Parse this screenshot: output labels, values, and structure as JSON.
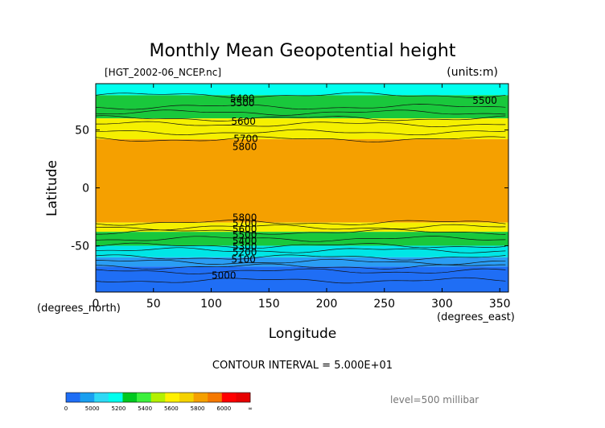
{
  "chart_data": {
    "type": "contour",
    "title": "Monthly Mean Geopotential height",
    "file_label": "[HGT_2002-06_NCEP.nc]",
    "units_label": "(units:m)",
    "xlabel": "Longitude",
    "ylabel": "Latitude",
    "x_unit": "(degrees_east)",
    "y_unit": "(degrees_north)",
    "xlim": [
      0,
      357.5
    ],
    "ylim": [
      -90,
      90
    ],
    "xticks": [
      0,
      50,
      100,
      150,
      200,
      250,
      300,
      350
    ],
    "yticks": [
      -50,
      0,
      50
    ],
    "contour_interval_text": "CONTOUR INTERVAL = 5.000E+01",
    "level_text": "level=500 millibar",
    "contour_labels": [
      {
        "text": "5400",
        "x": 127,
        "y": 78
      },
      {
        "text": "5500",
        "x": 127,
        "y": 74
      },
      {
        "text": "5600",
        "x": 128,
        "y": 58
      },
      {
        "text": "5700",
        "x": 130,
        "y": 43
      },
      {
        "text": "5800",
        "x": 129,
        "y": 36
      },
      {
        "text": "5500",
        "x": 337,
        "y": 76
      },
      {
        "text": "5800",
        "x": 129,
        "y": -25
      },
      {
        "text": "5700",
        "x": 129,
        "y": -30
      },
      {
        "text": "5600",
        "x": 129,
        "y": -35
      },
      {
        "text": "5500",
        "x": 129,
        "y": -40
      },
      {
        "text": "5400",
        "x": 129,
        "y": -45
      },
      {
        "text": "5300",
        "x": 129,
        "y": -50
      },
      {
        "text": "5200",
        "x": 129,
        "y": -55
      },
      {
        "text": "5100",
        "x": 128,
        "y": -61
      },
      {
        "text": "5000",
        "x": 111,
        "y": -75
      }
    ],
    "bands_by_latitude": [
      {
        "lat_from": 90,
        "lat_to": 80,
        "level": 5400
      },
      {
        "lat_from": 80,
        "lat_to": 60,
        "level": 5500
      },
      {
        "lat_from": 60,
        "lat_to": 42,
        "level": 5700
      },
      {
        "lat_from": 42,
        "lat_to": -30,
        "level": 5800
      },
      {
        "lat_from": -30,
        "lat_to": -38,
        "level": 5700
      },
      {
        "lat_from": -38,
        "lat_to": -50,
        "level": 5500
      },
      {
        "lat_from": -50,
        "lat_to": -60,
        "level": 5300
      },
      {
        "lat_from": -60,
        "lat_to": -68,
        "level": 5100
      },
      {
        "lat_from": -68,
        "lat_to": -90,
        "level": 5000
      }
    ],
    "colorbar": {
      "levels": [
        "0",
        "5000",
        "5200",
        "5400",
        "5600",
        "5800",
        "6000",
        "∞"
      ],
      "colors": [
        "#1f6ef5",
        "#199ff0",
        "#2ed9f5",
        "#00ffee",
        "#00c820",
        "#3cf03c",
        "#b4f000",
        "#fff000",
        "#f5d200",
        "#f5a000",
        "#f57800",
        "#ff0000",
        "#e60000"
      ]
    },
    "colors": {
      "5000": "#1f6ef5",
      "5100": "#2a9df4",
      "5200": "#1fc8f0",
      "5300": "#00e6e6",
      "5400": "#00ffee",
      "5500": "#19c83c",
      "5600": "#64f000",
      "5700": "#f5f000",
      "5800": "#f5a000"
    }
  }
}
